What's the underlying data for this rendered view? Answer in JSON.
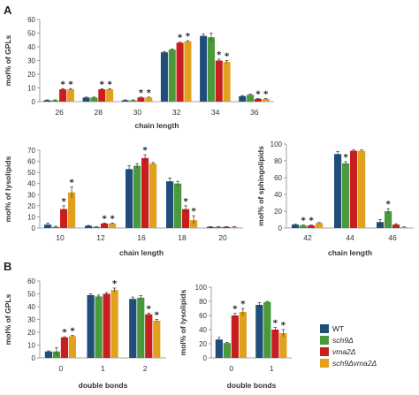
{
  "colors": {
    "WT": "#1f4e79",
    "sch9": "#4a9a3c",
    "vma2": "#c81e1e",
    "sch9vma2": "#e0a21e"
  },
  "legend": {
    "items": [
      {
        "label": "WT",
        "color": "#1f4e79"
      },
      {
        "label": "sch9Δ",
        "color": "#4a9a3c"
      },
      {
        "label": "vma2Δ",
        "color": "#c81e1e"
      },
      {
        "label": "sch9Δvma2Δ",
        "color": "#e0a21e"
      }
    ]
  },
  "panel_letters": [
    "A",
    "B"
  ],
  "chart_data": [
    {
      "id": "gpl_chain",
      "type": "bar",
      "panel": "A",
      "ylabel": "mol% of GPLs",
      "xlabel": "chain length",
      "ylim": [
        0,
        60
      ],
      "yticks": [
        0,
        10,
        20,
        30,
        40,
        50,
        60
      ],
      "categories": [
        "26",
        "28",
        "30",
        "32",
        "34",
        "36"
      ],
      "series": [
        {
          "name": "WT",
          "values": [
            1,
            3,
            1,
            36,
            48,
            4
          ],
          "errors": [
            0.3,
            0.3,
            0.3,
            0.5,
            1.5,
            0.4
          ]
        },
        {
          "name": "sch9Δ",
          "values": [
            1,
            3,
            1,
            38,
            47,
            5
          ],
          "errors": [
            0.3,
            0.3,
            0.3,
            0.5,
            3,
            0.5
          ]
        },
        {
          "name": "vma2Δ",
          "values": [
            9,
            9,
            3,
            43,
            30,
            2
          ],
          "errors": [
            0.5,
            0.5,
            0.3,
            0.5,
            1,
            0.3
          ]
        },
        {
          "name": "sch9Δvma2Δ",
          "values": [
            9,
            9,
            3,
            44,
            29,
            2
          ],
          "errors": [
            0.5,
            0.5,
            0.3,
            0.5,
            1,
            0.3
          ]
        }
      ],
      "stars": [
        [
          0,
          2
        ],
        [
          0,
          3
        ],
        [
          1,
          2
        ],
        [
          1,
          3
        ],
        [
          2,
          2
        ],
        [
          2,
          3
        ],
        [
          3,
          2
        ],
        [
          3,
          3
        ],
        [
          4,
          2
        ],
        [
          4,
          3
        ],
        [
          5,
          2
        ],
        [
          5,
          3
        ]
      ]
    },
    {
      "id": "lyso_chain",
      "type": "bar",
      "ylabel": "mol% of lysolipids",
      "xlabel": "chain length",
      "ylim": [
        0,
        70
      ],
      "yticks": [
        0,
        10,
        20,
        30,
        40,
        50,
        60,
        70
      ],
      "categories": [
        "10",
        "12",
        "16",
        "18",
        "20"
      ],
      "series": [
        {
          "name": "WT",
          "values": [
            3,
            2,
            53,
            42,
            1
          ],
          "errors": [
            1.5,
            0.3,
            3,
            3,
            0.3
          ]
        },
        {
          "name": "sch9Δ",
          "values": [
            1,
            1,
            56,
            40,
            1
          ],
          "errors": [
            0.5,
            0.3,
            2,
            2,
            0.3
          ]
        },
        {
          "name": "vma2Δ",
          "values": [
            17,
            4,
            63,
            17,
            1
          ],
          "errors": [
            3,
            0.5,
            3,
            3,
            0.3
          ]
        },
        {
          "name": "sch9Δvma2Δ",
          "values": [
            32,
            4,
            58,
            7,
            1
          ],
          "errors": [
            5,
            0.5,
            1,
            4,
            0.3
          ]
        }
      ],
      "stars": [
        [
          0,
          2
        ],
        [
          0,
          3
        ],
        [
          1,
          2
        ],
        [
          1,
          3
        ],
        [
          2,
          2
        ],
        [
          3,
          2
        ],
        [
          3,
          3
        ]
      ]
    },
    {
      "id": "sphingo_chain",
      "type": "bar",
      "ylabel": "mol% of sphingolipids",
      "xlabel": "chain length",
      "ylim": [
        0,
        100
      ],
      "yticks": [
        0,
        20,
        40,
        60,
        80,
        100
      ],
      "categories": [
        "42",
        "44",
        "46"
      ],
      "series": [
        {
          "name": "WT",
          "values": [
            4,
            88,
            7
          ],
          "errors": [
            0.5,
            3,
            3
          ]
        },
        {
          "name": "sch9Δ",
          "values": [
            3,
            77,
            20
          ],
          "errors": [
            0.5,
            2,
            3
          ]
        },
        {
          "name": "vma2Δ",
          "values": [
            3,
            92,
            4
          ],
          "errors": [
            0.5,
            1,
            1
          ]
        },
        {
          "name": "sch9Δvma2Δ",
          "values": [
            6,
            92,
            1
          ],
          "errors": [
            0.5,
            1,
            0.3
          ]
        }
      ],
      "stars": [
        [
          0,
          1
        ],
        [
          0,
          2
        ],
        [
          1,
          1
        ],
        [
          2,
          1
        ]
      ]
    },
    {
      "id": "gpl_db",
      "type": "bar",
      "panel": "B",
      "ylabel": "mol% of GPLs",
      "xlabel": "double bonds",
      "ylim": [
        0,
        60
      ],
      "yticks": [
        0,
        10,
        20,
        30,
        40,
        50,
        60
      ],
      "categories": [
        "0",
        "1",
        "2"
      ],
      "series": [
        {
          "name": "WT",
          "values": [
            5,
            49,
            46
          ],
          "errors": [
            0.5,
            1,
            1.5
          ]
        },
        {
          "name": "sch9Δ",
          "values": [
            5,
            48,
            47
          ],
          "errors": [
            3,
            1,
            1.5
          ]
        },
        {
          "name": "vma2Δ",
          "values": [
            16,
            50,
            34
          ],
          "errors": [
            0.5,
            1,
            1
          ]
        },
        {
          "name": "sch9Δvma2Δ",
          "values": [
            17,
            53,
            29
          ],
          "errors": [
            0.5,
            1.5,
            1
          ]
        }
      ],
      "stars": [
        [
          0,
          2
        ],
        [
          0,
          3
        ],
        [
          1,
          3
        ],
        [
          2,
          2
        ],
        [
          2,
          3
        ]
      ]
    },
    {
      "id": "lyso_db",
      "type": "bar",
      "ylabel": "mol% of lysolipids",
      "xlabel": "double bonds",
      "ylim": [
        0,
        100
      ],
      "yticks": [
        0,
        20,
        40,
        60,
        80,
        100
      ],
      "categories": [
        "0",
        "1"
      ],
      "series": [
        {
          "name": "WT",
          "values": [
            26,
            75
          ],
          "errors": [
            3,
            3
          ]
        },
        {
          "name": "sch9Δ",
          "values": [
            21,
            79
          ],
          "errors": [
            1,
            1
          ]
        },
        {
          "name": "vma2Δ",
          "values": [
            60,
            40
          ],
          "errors": [
            3,
            3
          ]
        },
        {
          "name": "sch9Δvma2Δ",
          "values": [
            65,
            35
          ],
          "errors": [
            5,
            5
          ]
        }
      ],
      "stars": [
        [
          0,
          2
        ],
        [
          0,
          3
        ],
        [
          1,
          2
        ],
        [
          1,
          3
        ]
      ]
    }
  ]
}
